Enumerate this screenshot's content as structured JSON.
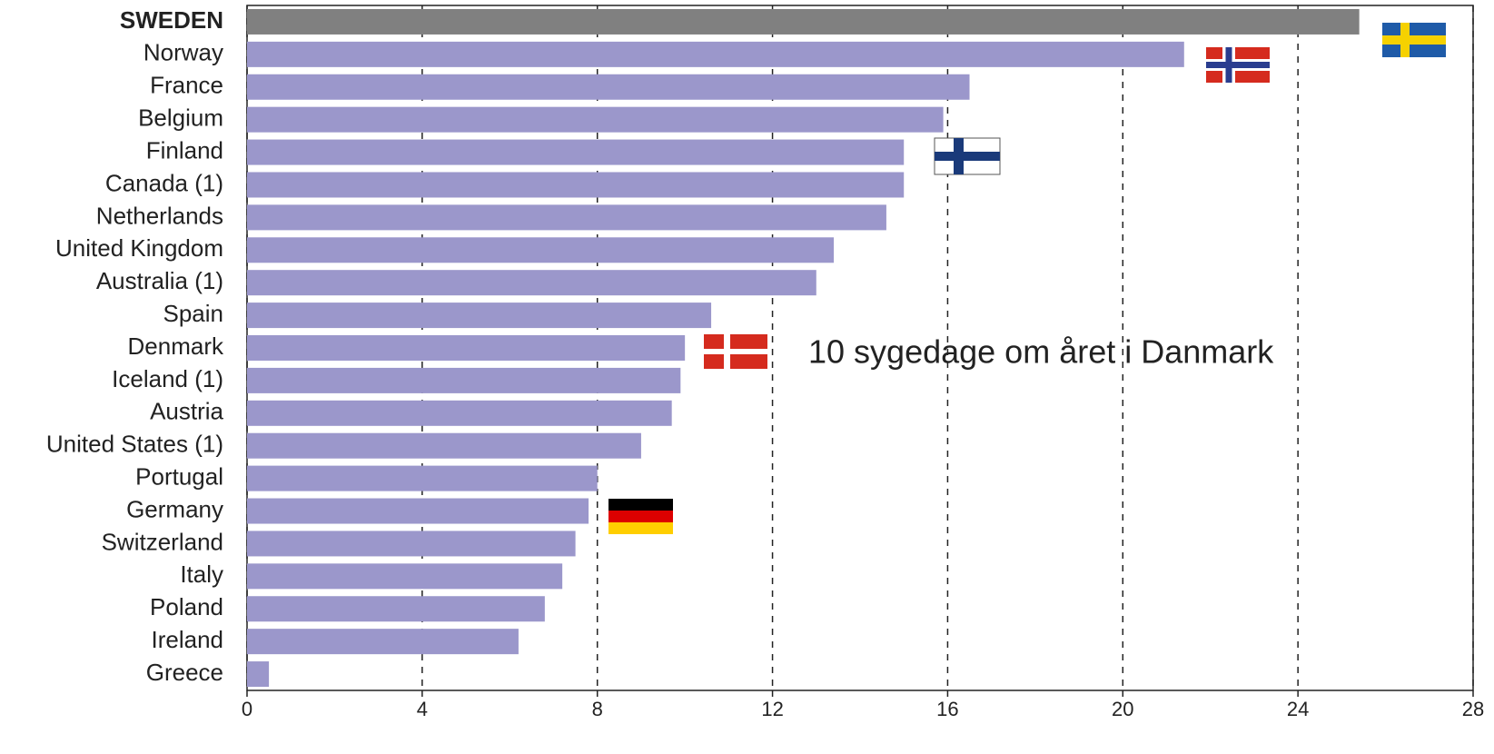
{
  "chart_data": {
    "type": "bar",
    "orientation": "horizontal",
    "categories": [
      "SWEDEN",
      "Norway",
      "France",
      "Belgium",
      "Finland",
      "Canada (1)",
      "Netherlands",
      "United Kingdom",
      "Australia (1)",
      "Spain",
      "Denmark",
      "Iceland (1)",
      "Austria",
      "United States (1)",
      "Portugal",
      "Germany",
      "Switzerland",
      "Italy",
      "Poland",
      "Ireland",
      "Greece"
    ],
    "values": [
      25.4,
      21.4,
      16.5,
      15.9,
      15.0,
      15.0,
      14.6,
      13.4,
      13.0,
      10.6,
      10.0,
      9.9,
      9.7,
      9.0,
      8.0,
      7.8,
      7.5,
      7.2,
      6.8,
      6.2,
      0.5
    ],
    "colors": [
      "#808080",
      "#9b97cb",
      "#9b97cb",
      "#9b97cb",
      "#9b97cb",
      "#9b97cb",
      "#9b97cb",
      "#9b97cb",
      "#9b97cb",
      "#9b97cb",
      "#9b97cb",
      "#9b97cb",
      "#9b97cb",
      "#9b97cb",
      "#9b97cb",
      "#9b97cb",
      "#9b97cb",
      "#9b97cb",
      "#9b97cb",
      "#9b97cb",
      "#9b97cb"
    ],
    "xlim": [
      0,
      28
    ],
    "xticks": [
      0,
      4,
      8,
      12,
      16,
      20,
      24,
      28
    ],
    "grid": true,
    "annotation": "10 sygedage om året i Danmark"
  }
}
